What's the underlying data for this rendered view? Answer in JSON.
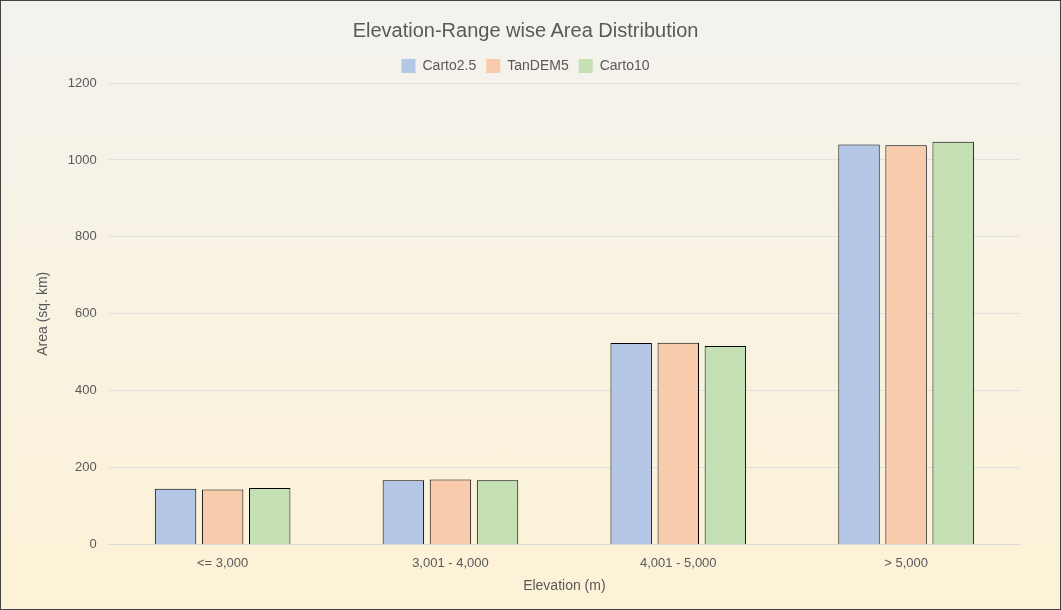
{
  "chart_data": {
    "type": "bar",
    "title": "Elevation-Range wise Area Distribution",
    "xlabel": "Elevation (m)",
    "ylabel": "Area (sq. km)",
    "categories": [
      "<= 3,000",
      "3,001 - 4,000",
      "4,001 - 5,000",
      "> 5,000"
    ],
    "series": [
      {
        "name": "Carto2.5",
        "color": "#b4c7e7",
        "values": [
          145,
          167,
          524,
          1040
        ]
      },
      {
        "name": "TanDEM5",
        "color": "#f8cbad",
        "values": [
          143,
          169,
          525,
          1038
        ]
      },
      {
        "name": "Carto10",
        "color": "#c5e0b4",
        "values": [
          147,
          167,
          516,
          1047
        ]
      }
    ],
    "ylim": [
      0,
      1200
    ],
    "yticks": [
      0,
      200,
      400,
      600,
      800,
      1000,
      1200
    ],
    "grid": "y",
    "legend": "top"
  }
}
